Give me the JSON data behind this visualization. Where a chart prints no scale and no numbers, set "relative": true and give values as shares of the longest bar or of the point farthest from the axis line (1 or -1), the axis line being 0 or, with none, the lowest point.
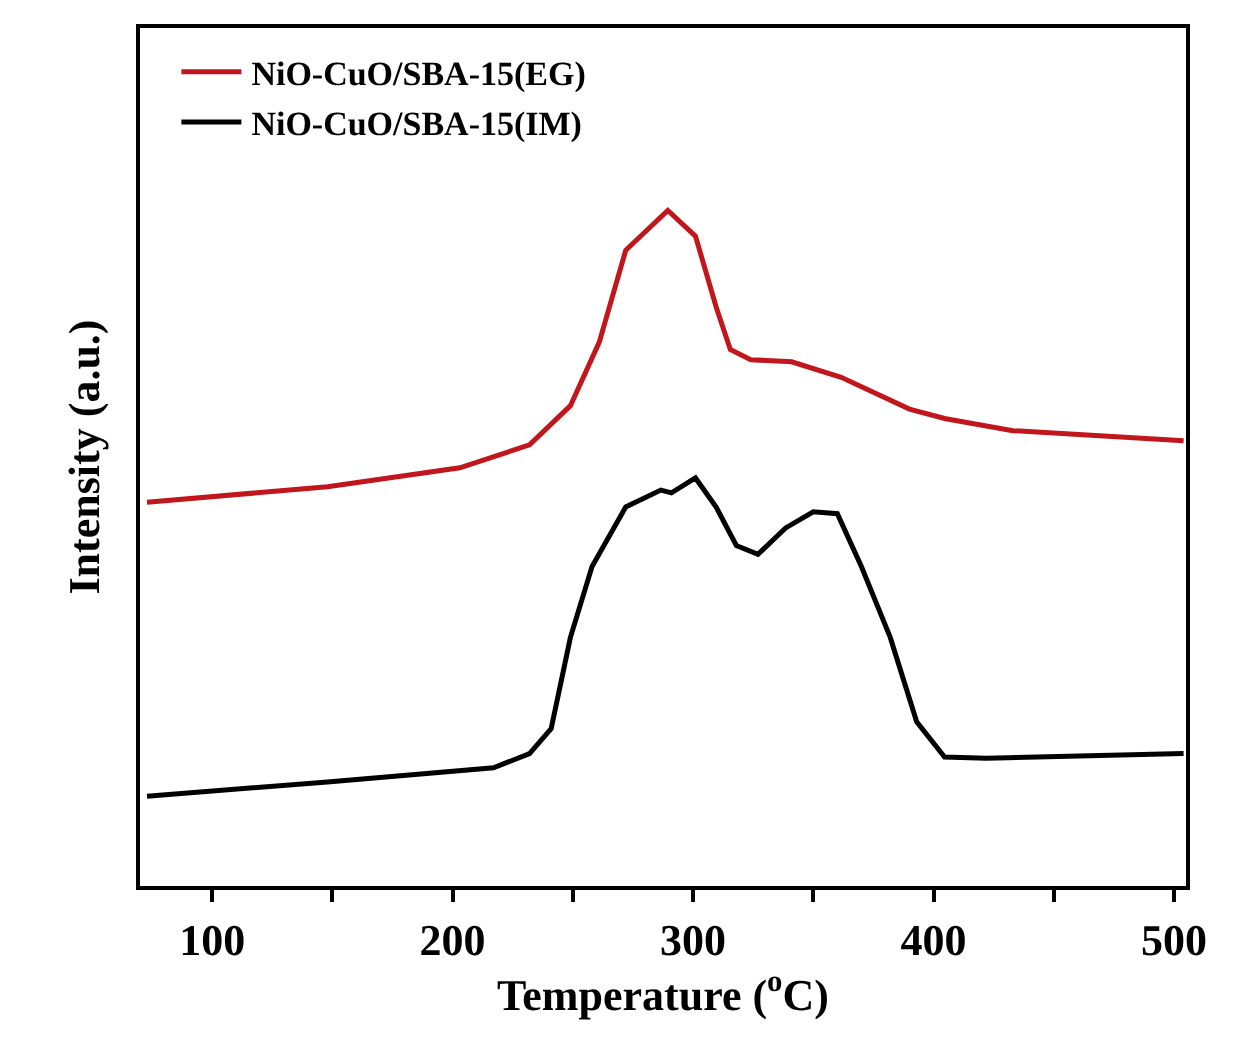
{
  "chart_data": {
    "type": "line",
    "xlabel": "Temperature ($^{o}$C)",
    "ylabel": "Intensity (a.u.)",
    "relative": true,
    "xlim": [
      70,
      505
    ],
    "xticks": [
      100,
      {
        "value": 150,
        "label": null
      },
      200,
      {
        "value": 250,
        "label": null
      },
      300,
      {
        "value": 350,
        "label": null
      },
      400,
      {
        "value": 450,
        "label": null
      },
      500
    ],
    "tick_labels": "x",
    "legend": "top left",
    "marker": "none",
    "line_style": "solid",
    "series": [
      {
        "name": "NiO-CuO/SBA-15(EG)",
        "color": "#c0161c",
        "x": [
          72.9,
          148,
          203,
          232,
          249,
          261,
          272,
          289.5,
          301,
          309.6,
          315.5,
          324,
          341,
          361.6,
          390,
          404.6,
          433,
          504
        ],
        "values": [
          0.568,
          0.591,
          0.619,
          0.653,
          0.711,
          0.805,
          0.941,
          1.0,
          0.962,
          0.857,
          0.794,
          0.779,
          0.776,
          0.753,
          0.706,
          0.692,
          0.674,
          0.659
        ]
      },
      {
        "name": "NiO-CuO/SBA-15(IM)",
        "color": "#000000",
        "x": [
          72.9,
          148,
          217,
          232,
          241,
          249,
          258,
          272,
          286.6,
          291,
          301,
          309.6,
          318,
          327,
          338.5,
          350,
          360,
          370,
          382,
          393,
          404.6,
          422,
          504
        ],
        "values": [
          0.133,
          0.154,
          0.175,
          0.196,
          0.233,
          0.368,
          0.473,
          0.561,
          0.586,
          0.582,
          0.604,
          0.561,
          0.504,
          0.491,
          0.53,
          0.554,
          0.551,
          0.473,
          0.368,
          0.243,
          0.191,
          0.189,
          0.196
        ]
      }
    ]
  }
}
